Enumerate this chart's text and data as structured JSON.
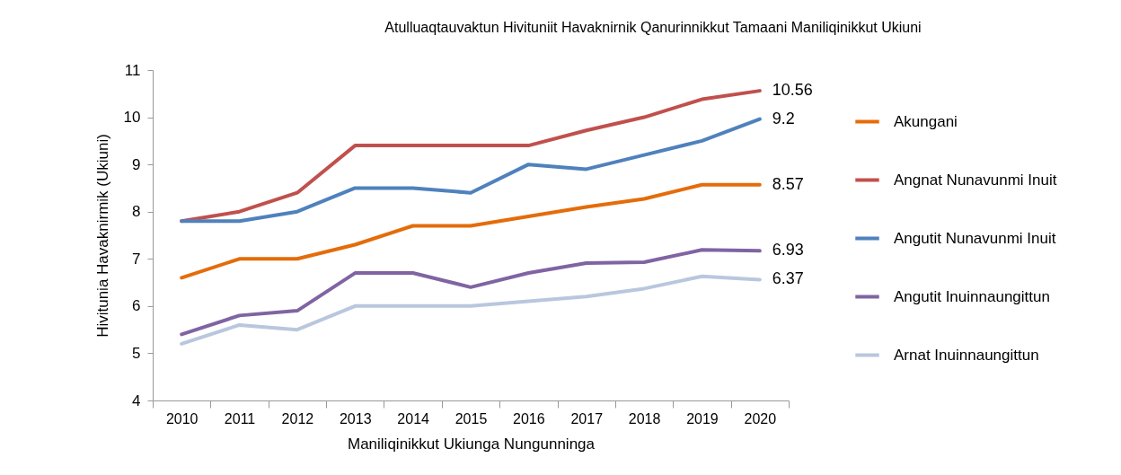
{
  "chart_data": {
    "type": "line",
    "title": "Atulluaqtauvaktun Hivituniit Havaknirnik Qanurinnikkut Tamaani Maniliqinikkut Ukiuni",
    "xlabel": "Maniliqinikkut Ukiunga Nungunninga",
    "ylabel": "Hivitunia Havaknirmik (Ukiuni)",
    "categories": [
      "2010",
      "2011",
      "2012",
      "2013",
      "2014",
      "2015",
      "2016",
      "2017",
      "2018",
      "2019",
      "2020"
    ],
    "series": [
      {
        "name": "Akungani",
        "color": "#e46c0a",
        "values": [
          6.6,
          7.0,
          7.0,
          7.3,
          7.7,
          7.7,
          7.9,
          8.1,
          8.27,
          8.57,
          8.57
        ]
      },
      {
        "name": "Angnat Nunavunmi Inuit",
        "color": "#c0504d",
        "values": [
          7.8,
          8.0,
          8.4,
          9.4,
          9.4,
          9.4,
          9.4,
          9.72,
          10.0,
          10.38,
          10.56
        ]
      },
      {
        "name": "Angutit Nunavunmi Inuit",
        "color": "#4f81bd",
        "values": [
          7.8,
          7.8,
          8.0,
          8.5,
          8.5,
          8.4,
          9.0,
          8.9,
          9.2,
          9.5,
          9.96
        ]
      },
      {
        "name": "Angutit Inuinnaungittun",
        "color": "#8064a2",
        "values": [
          5.4,
          5.8,
          5.9,
          6.7,
          6.7,
          6.4,
          6.7,
          6.91,
          6.93,
          7.19,
          7.17
        ]
      },
      {
        "name": "Arnat Inuinnaungittun",
        "color": "#b9c7de",
        "values": [
          5.2,
          5.6,
          5.5,
          6.0,
          6.0,
          6.0,
          6.1,
          6.2,
          6.37,
          6.63,
          6.56
        ]
      }
    ],
    "ylim": [
      4,
      11
    ],
    "yticks": [
      4,
      5,
      6,
      7,
      8,
      9,
      10,
      11
    ],
    "legend": "right",
    "annotations": [
      {
        "text": "10.56",
        "x": "2020",
        "y": 10.56
      },
      {
        "text": "9.2",
        "x": "2020",
        "y": 9.96
      },
      {
        "text": "8.57",
        "x": "2020",
        "y": 8.57
      },
      {
        "text": "6.93",
        "x": "2020",
        "y": 7.17
      },
      {
        "text": "6.37",
        "x": "2020",
        "y": 6.56
      }
    ]
  }
}
